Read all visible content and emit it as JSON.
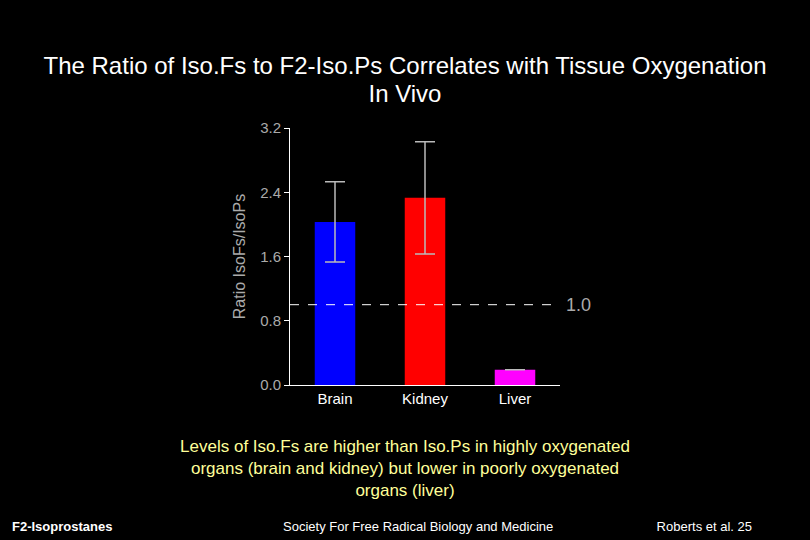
{
  "chart_data": {
    "type": "bar",
    "title": "The Ratio of Iso.Fs to F2-Iso.Ps Correlates with Tissue Oxygenation In Vivo",
    "ylabel": "Ratio IsoFs/IsoPs",
    "categories": [
      "Brain",
      "Kidney",
      "Liver"
    ],
    "values": [
      2.03,
      2.33,
      0.19
    ],
    "error": [
      0.5,
      0.7,
      0
    ],
    "colors": [
      "#0000ff",
      "#ff0000",
      "#ff00ff"
    ],
    "ylim": [
      0,
      3.2
    ],
    "yticks": [
      {
        "value": 0,
        "label": "0.0"
      },
      {
        "value": 0.8,
        "label": "0.8"
      },
      {
        "value": 1.6,
        "label": "1.6"
      },
      {
        "value": 2.4,
        "label": "2.4"
      },
      {
        "value": 3.2,
        "label": "3.2"
      }
    ],
    "reference_line": {
      "value": 1.0,
      "label": "1.0"
    },
    "caption": "Levels of Iso.Fs are higher than Iso.Ps in highly oxygenated organs (brain and kidney) but lower in poorly oxygenated organs (liver)",
    "footer": {
      "left": "F2-Isoprostanes",
      "center": "Society For Free Radical Biology and Medicine",
      "right": "Roberts et al. 25"
    }
  }
}
